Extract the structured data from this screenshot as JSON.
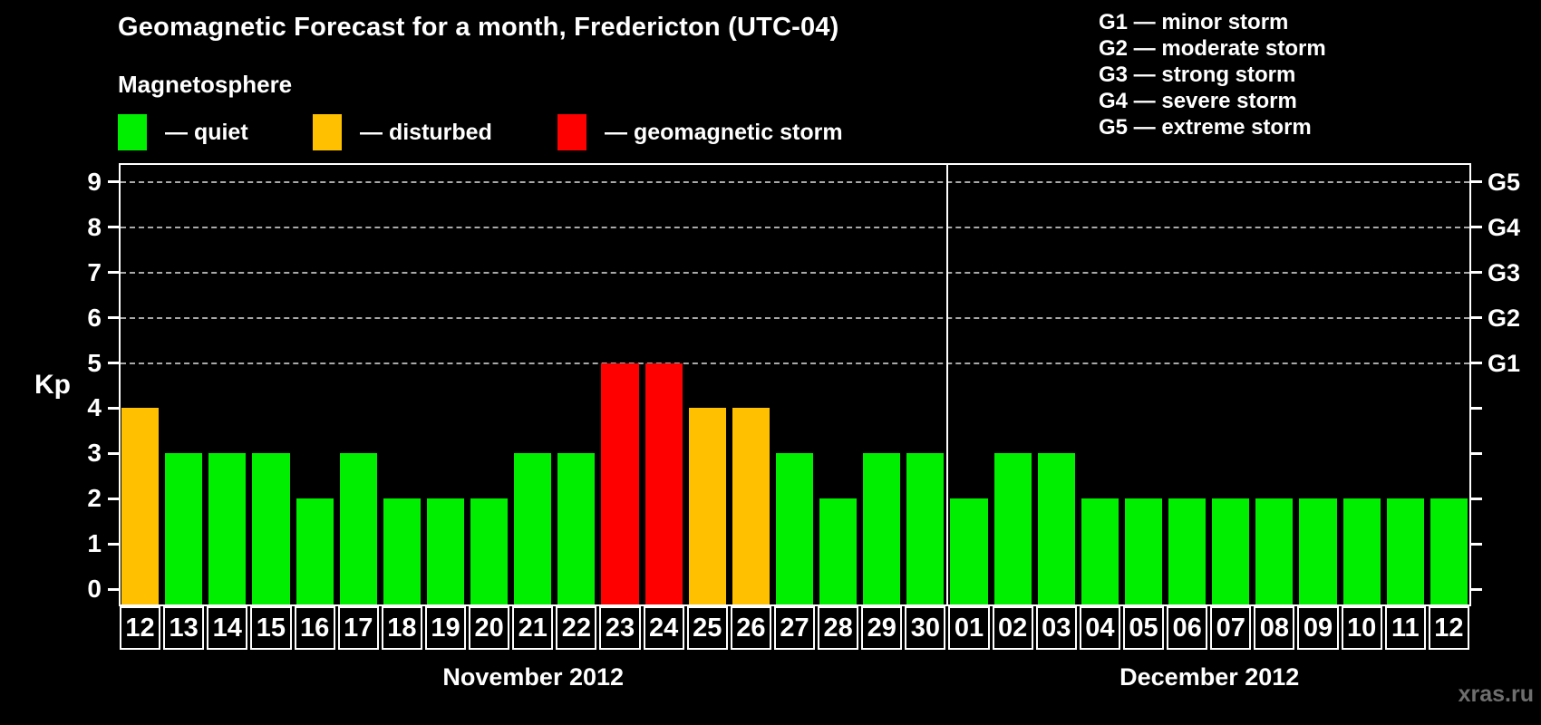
{
  "header": {
    "title": "Geomagnetic Forecast for a month, Fredericton (UTC-04)",
    "legend_title": "Magnetosphere",
    "legend_items": [
      {
        "name": "quiet",
        "label": "— quiet",
        "color": "#00ee00"
      },
      {
        "name": "disturbed",
        "label": "— disturbed",
        "color": "#ffc000"
      },
      {
        "name": "storm",
        "label": "— geomagnetic storm",
        "color": "#ff0000"
      }
    ],
    "g_legend": [
      "G1 — minor storm",
      "G2 — moderate storm",
      "G3 — strong storm",
      "G4 — severe storm",
      "G5 — extreme storm"
    ]
  },
  "watermark": "xras.ru",
  "chart_data": {
    "type": "bar",
    "title": "Geomagnetic Forecast for a month, Fredericton (UTC-04)",
    "ylabel": "Kp",
    "ylim": [
      0,
      9
    ],
    "y_ticks": [
      0,
      1,
      2,
      3,
      4,
      5,
      6,
      7,
      8,
      9
    ],
    "gridlines_at_kp": [
      5,
      6,
      7,
      8,
      9
    ],
    "grid": "dashed, only at G-storm levels",
    "right_axis_labels": [
      {
        "kp": 5,
        "label": "G1"
      },
      {
        "kp": 6,
        "label": "G2"
      },
      {
        "kp": 7,
        "label": "G3"
      },
      {
        "kp": 8,
        "label": "G4"
      },
      {
        "kp": 9,
        "label": "G5"
      }
    ],
    "status_colors": {
      "quiet": "#00ee00",
      "disturbed": "#ffc000",
      "storm": "#ff0000"
    },
    "months": [
      {
        "label": "November 2012",
        "days": [
          {
            "day": "12",
            "kp": 4,
            "status": "disturbed"
          },
          {
            "day": "13",
            "kp": 3,
            "status": "quiet"
          },
          {
            "day": "14",
            "kp": 3,
            "status": "quiet"
          },
          {
            "day": "15",
            "kp": 3,
            "status": "quiet"
          },
          {
            "day": "16",
            "kp": 2,
            "status": "quiet"
          },
          {
            "day": "17",
            "kp": 3,
            "status": "quiet"
          },
          {
            "day": "18",
            "kp": 2,
            "status": "quiet"
          },
          {
            "day": "19",
            "kp": 2,
            "status": "quiet"
          },
          {
            "day": "20",
            "kp": 2,
            "status": "quiet"
          },
          {
            "day": "21",
            "kp": 3,
            "status": "quiet"
          },
          {
            "day": "22",
            "kp": 3,
            "status": "quiet"
          },
          {
            "day": "23",
            "kp": 5,
            "status": "storm"
          },
          {
            "day": "24",
            "kp": 5,
            "status": "storm"
          },
          {
            "day": "25",
            "kp": 4,
            "status": "disturbed"
          },
          {
            "day": "26",
            "kp": 4,
            "status": "disturbed"
          },
          {
            "day": "27",
            "kp": 3,
            "status": "quiet"
          },
          {
            "day": "28",
            "kp": 2,
            "status": "quiet"
          },
          {
            "day": "29",
            "kp": 3,
            "status": "quiet"
          },
          {
            "day": "30",
            "kp": 3,
            "status": "quiet"
          }
        ]
      },
      {
        "label": "December 2012",
        "days": [
          {
            "day": "01",
            "kp": 2,
            "status": "quiet"
          },
          {
            "day": "02",
            "kp": 3,
            "status": "quiet"
          },
          {
            "day": "03",
            "kp": 3,
            "status": "quiet"
          },
          {
            "day": "04",
            "kp": 2,
            "status": "quiet"
          },
          {
            "day": "05",
            "kp": 2,
            "status": "quiet"
          },
          {
            "day": "06",
            "kp": 2,
            "status": "quiet"
          },
          {
            "day": "07",
            "kp": 2,
            "status": "quiet"
          },
          {
            "day": "08",
            "kp": 2,
            "status": "quiet"
          },
          {
            "day": "09",
            "kp": 2,
            "status": "quiet"
          },
          {
            "day": "10",
            "kp": 2,
            "status": "quiet"
          },
          {
            "day": "11",
            "kp": 2,
            "status": "quiet"
          },
          {
            "day": "12",
            "kp": 2,
            "status": "quiet"
          }
        ]
      }
    ]
  }
}
